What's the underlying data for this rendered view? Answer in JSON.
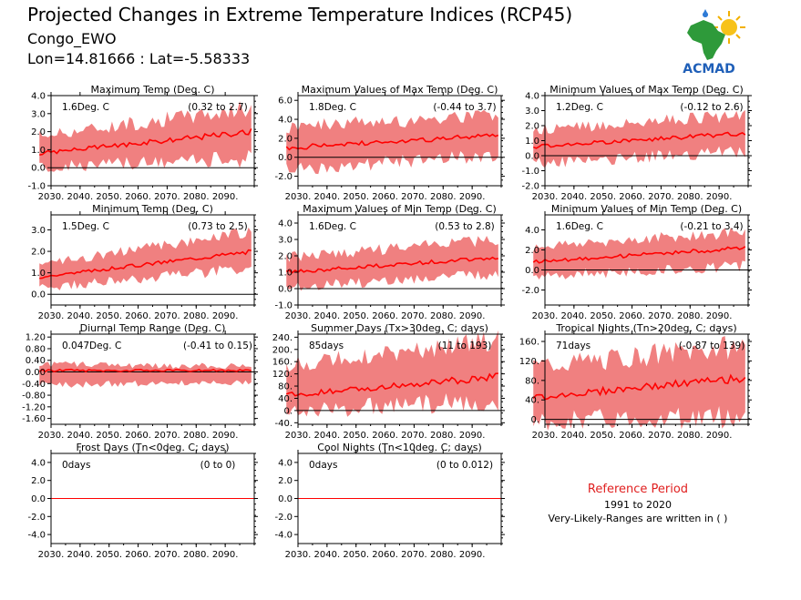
{
  "header": {
    "title": "Projected Changes in Extreme Temperature Indices (RCP45)",
    "region": "Congo_EWO",
    "coords": "Lon=14.81666 : Lat=-5.58333"
  },
  "logo": {
    "name": "ACMAD"
  },
  "reference": {
    "label": "Reference Period",
    "period": "1991 to 2020",
    "note": "Very-Likely-Ranges are written in ( )"
  },
  "colors": {
    "band": "#f08080",
    "line": "#ff0000",
    "zero": "#000000"
  },
  "chart_data": [
    {
      "type": "area",
      "title": "Maximum Temp (Deg. C)",
      "value_label": "1.6Deg. C",
      "range_label": "(0.32 to 2.7)",
      "x_ticks": [
        "2030.",
        "2040.",
        "2050.",
        "2060.",
        "2070.",
        "2080.",
        "2090."
      ],
      "y_ticks": [
        "-1.0",
        "0.0",
        "1.0",
        "2.0",
        "3.0",
        "4.0"
      ],
      "ylim": [
        -1.0,
        4.0
      ],
      "x_range": [
        2030,
        2100
      ],
      "start": 0.8,
      "end": 2.0,
      "low_start": 0.0,
      "low_end": 0.5,
      "high_start": 1.8,
      "high_end": 3.3
    },
    {
      "type": "area",
      "title": "Maximum Values of Max Temp (Deg. C)",
      "value_label": "1.8Deg. C",
      "range_label": "(-0.44 to 3.7)",
      "x_ticks": [
        "2030.",
        "2040.",
        "2050.",
        "2060.",
        "2070.",
        "2080.",
        "2090."
      ],
      "y_ticks": [
        "-2.0",
        "0.0",
        "2.0",
        "4.0",
        "6.0"
      ],
      "ylim": [
        -3.0,
        6.5
      ],
      "x_range": [
        2030,
        2100
      ],
      "start": 1.0,
      "end": 2.3,
      "low_start": -1.2,
      "low_end": 0.2,
      "high_start": 3.2,
      "high_end": 4.5
    },
    {
      "type": "area",
      "title": "Minimum Values of Max Temp (Deg. C)",
      "value_label": "1.2Deg. C",
      "range_label": "(-0.12 to 2.6)",
      "x_ticks": [
        "2030.",
        "2040.",
        "2050.",
        "2060.",
        "2070.",
        "2080.",
        "2090."
      ],
      "y_ticks": [
        "-2.0",
        "-1.0",
        "0.0",
        "1.0",
        "2.0",
        "3.0",
        "4.0"
      ],
      "ylim": [
        -2.0,
        4.0
      ],
      "x_range": [
        2030,
        2100
      ],
      "start": 0.6,
      "end": 1.5,
      "low_start": -0.5,
      "low_end": 0.3,
      "high_start": 1.7,
      "high_end": 2.7
    },
    {
      "type": "area",
      "title": "Minimum Temp (Deg. C)",
      "value_label": "1.5Deg. C",
      "range_label": "(0.73 to 2.5)",
      "x_ticks": [
        "2030.",
        "2040.",
        "2050.",
        "2060.",
        "2070.",
        "2080.",
        "2090."
      ],
      "y_ticks": [
        "0.0",
        "1.0",
        "2.0",
        "3.0"
      ],
      "ylim": [
        -0.5,
        3.7
      ],
      "x_range": [
        2030,
        2100
      ],
      "start": 0.8,
      "end": 2.0,
      "low_start": 0.3,
      "low_end": 1.2,
      "high_start": 1.4,
      "high_end": 2.9
    },
    {
      "type": "area",
      "title": "Maximum Values of Min Temp (Deg. C)",
      "value_label": "1.6Deg. C",
      "range_label": "(0.53 to 2.8)",
      "x_ticks": [
        "2030.",
        "2040.",
        "2050.",
        "2060.",
        "2070.",
        "2080.",
        "2090."
      ],
      "y_ticks": [
        "-1.0",
        "0.0",
        "1.0",
        "2.0",
        "3.0",
        "4.0"
      ],
      "ylim": [
        -1.0,
        4.5
      ],
      "x_range": [
        2030,
        2100
      ],
      "start": 1.0,
      "end": 1.9,
      "low_start": 0.1,
      "low_end": 0.9,
      "high_start": 1.9,
      "high_end": 3.0
    },
    {
      "type": "area",
      "title": "Minimum Values of Min Temp (Deg. C)",
      "value_label": "1.6Deg. C",
      "range_label": "(-0.21 to 3.4)",
      "x_ticks": [
        "2030.",
        "2040.",
        "2050.",
        "2060.",
        "2070.",
        "2080.",
        "2090."
      ],
      "y_ticks": [
        "-2.0",
        "0.0",
        "2.0",
        "4.0"
      ],
      "ylim": [
        -3.5,
        5.5
      ],
      "x_range": [
        2030,
        2100
      ],
      "start": 0.8,
      "end": 2.2,
      "low_start": -0.6,
      "low_end": 0.4,
      "high_start": 2.3,
      "high_end": 3.8
    },
    {
      "type": "area",
      "title": "Diurnal Temp Range (Deg. C)",
      "value_label": "0.047Deg. C",
      "range_label": "(-0.41 to 0.15)",
      "x_ticks": [
        "2030.",
        "2040.",
        "2050.",
        "2060.",
        "2070.",
        "2080.",
        "2090."
      ],
      "y_ticks": [
        "-1.60",
        "-1.20",
        "-0.80",
        "-0.40",
        "0.00",
        "0.40",
        "0.80",
        "1.20"
      ],
      "ylim": [
        -1.8,
        1.3
      ],
      "x_range": [
        2030,
        2100
      ],
      "start": 0.05,
      "end": 0.05,
      "low_start": -0.45,
      "low_end": -0.35,
      "high_start": 0.25,
      "high_end": 0.2
    },
    {
      "type": "area",
      "title": "Summer Days (Tx>30deg. C; days)",
      "value_label": "85days",
      "range_label": "(11 to 193)",
      "x_ticks": [
        "2030.",
        "2040.",
        "2050.",
        "2060.",
        "2070.",
        "2080.",
        "2090."
      ],
      "y_ticks": [
        "-40.",
        "0.",
        "40.",
        "80.",
        "120.",
        "160.",
        "200.",
        "240."
      ],
      "ylim": [
        -45,
        250
      ],
      "x_range": [
        2030,
        2100
      ],
      "start": 50,
      "end": 110,
      "low_start": 0,
      "low_end": 30,
      "high_start": 150,
      "high_end": 230
    },
    {
      "type": "area",
      "title": "Tropical Nights (Tn>20deg. C; days)",
      "value_label": "71days",
      "range_label": "(-0.87 to 139)",
      "x_ticks": [
        "2030.",
        "2040.",
        "2050.",
        "2060.",
        "2070.",
        "2080.",
        "2090."
      ],
      "y_ticks": [
        "0.",
        "40.",
        "80.",
        "120.",
        "160."
      ],
      "ylim": [
        -10,
        175
      ],
      "x_range": [
        2030,
        2100
      ],
      "start": 45,
      "end": 85,
      "low_start": -3,
      "low_end": 5,
      "high_start": 110,
      "high_end": 150
    },
    {
      "type": "line",
      "title": "Frost Days (Tn<0deg. C; days)",
      "value_label": "0days",
      "range_label": "(0 to 0)",
      "x_ticks": [
        "2030.",
        "2040.",
        "2050.",
        "2060.",
        "2070.",
        "2080.",
        "2090."
      ],
      "y_ticks": [
        "-4.0",
        "-2.0",
        "0.0",
        "2.0",
        "4.0"
      ],
      "ylim": [
        -5.0,
        5.0
      ],
      "x_range": [
        2030,
        2100
      ],
      "start": 0,
      "end": 0,
      "low_start": 0,
      "low_end": 0,
      "high_start": 0,
      "high_end": 0
    },
    {
      "type": "line",
      "title": "Cool Nights (Tn<10deg. C; days)",
      "value_label": "0days",
      "range_label": "(0 to 0.012)",
      "x_ticks": [
        "2030.",
        "2040.",
        "2050.",
        "2060.",
        "2070.",
        "2080.",
        "2090."
      ],
      "y_ticks": [
        "-4.0",
        "-2.0",
        "0.0",
        "2.0",
        "4.0"
      ],
      "ylim": [
        -5.0,
        5.0
      ],
      "x_range": [
        2030,
        2100
      ],
      "start": 0,
      "end": 0,
      "low_start": 0,
      "low_end": 0,
      "high_start": 0,
      "high_end": 0
    }
  ]
}
